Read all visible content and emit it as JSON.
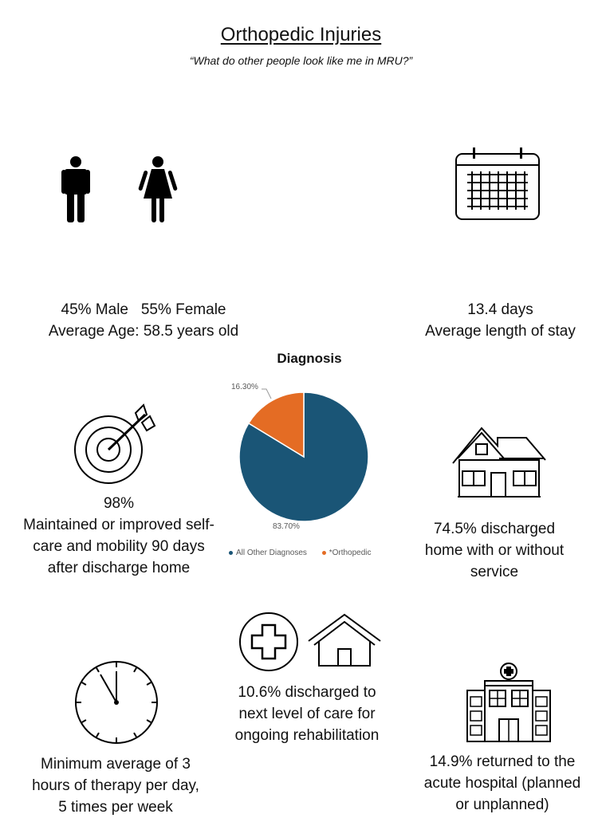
{
  "header": {
    "title": "Orthopedic Injuries",
    "subtitle": "“What do other people look like me in MRU?”"
  },
  "stats": {
    "demographics": {
      "line1": "45% Male   55% Female",
      "line2": "Average Age: 58.5 years old"
    },
    "length_of_stay": {
      "line1": "13.4 days",
      "line2": "Average length of stay"
    },
    "maintained": {
      "line1": "98%",
      "line2": "Maintained or improved self-",
      "line3": "care and mobility 90 days",
      "line4": "after discharge home"
    },
    "discharged_home": {
      "line1": "74.5% discharged",
      "line2": "home with or without",
      "line3": "service"
    },
    "next_level": {
      "line1": "10.6% discharged to",
      "line2": "next level of care for",
      "line3": "ongoing rehabilitation"
    },
    "therapy": {
      "line1": "Minimum average of 3",
      "line2": "hours of therapy per day,",
      "line3": "5 times per week"
    },
    "returned_acute": {
      "line1": "14.9% returned to the",
      "line2": "acute hospital (planned",
      "line3": "or unplanned)"
    }
  },
  "icons": [
    "male-icon",
    "female-icon",
    "calendar-icon",
    "target-icon",
    "house-icon",
    "medical-cross-icon",
    "home-outline-icon",
    "clock-icon",
    "hospital-icon"
  ],
  "chart_data": {
    "type": "pie",
    "title": "Diagnosis",
    "slices": [
      {
        "name": "All Other Diagnoses",
        "value": 83.7,
        "label": "83.70%",
        "color": "#1a5576"
      },
      {
        "name": "*Orthopedic",
        "value": 16.3,
        "label": "16.30%",
        "color": "#e46c24"
      }
    ],
    "legend_position": "bottom"
  }
}
